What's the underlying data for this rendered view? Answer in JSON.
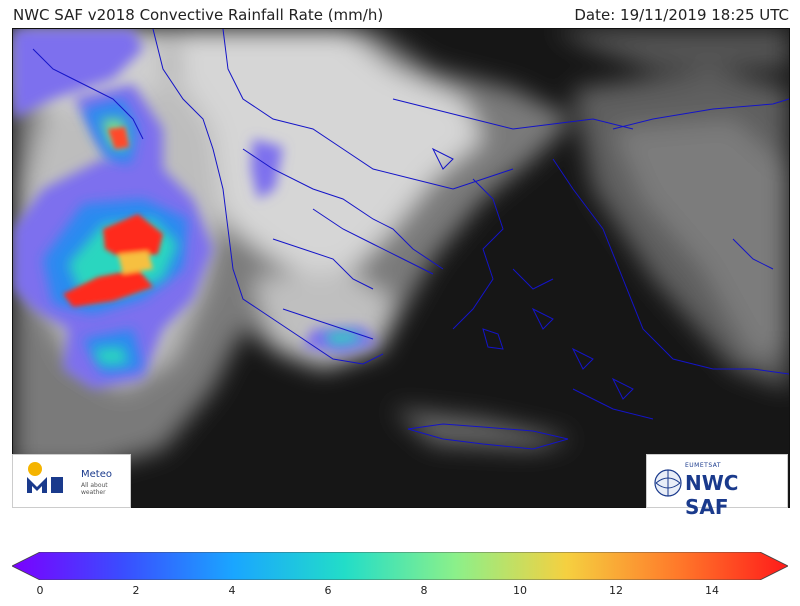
{
  "header": {
    "title": "NWC SAF v2018 Convective Rainfall Rate (mm/h)",
    "date": "Date: 19/11/2019 18:25 UTC"
  },
  "logos": {
    "meteo_name": "Meteo",
    "meteo_tagline": "All about weather",
    "nwc_top": "EUMETSAT",
    "nwc_main": "NWC SAF"
  },
  "colorbar": {
    "ticks": [
      "0",
      "2",
      "4",
      "6",
      "8",
      "10",
      "12",
      "14"
    ],
    "min": 0,
    "max": 15,
    "colors": [
      "#7b00ff",
      "#3a4dff",
      "#1aa6ff",
      "#22ddc8",
      "#8bf08a",
      "#f5d040",
      "#ff7a2a",
      "#ff1a1a"
    ]
  }
}
